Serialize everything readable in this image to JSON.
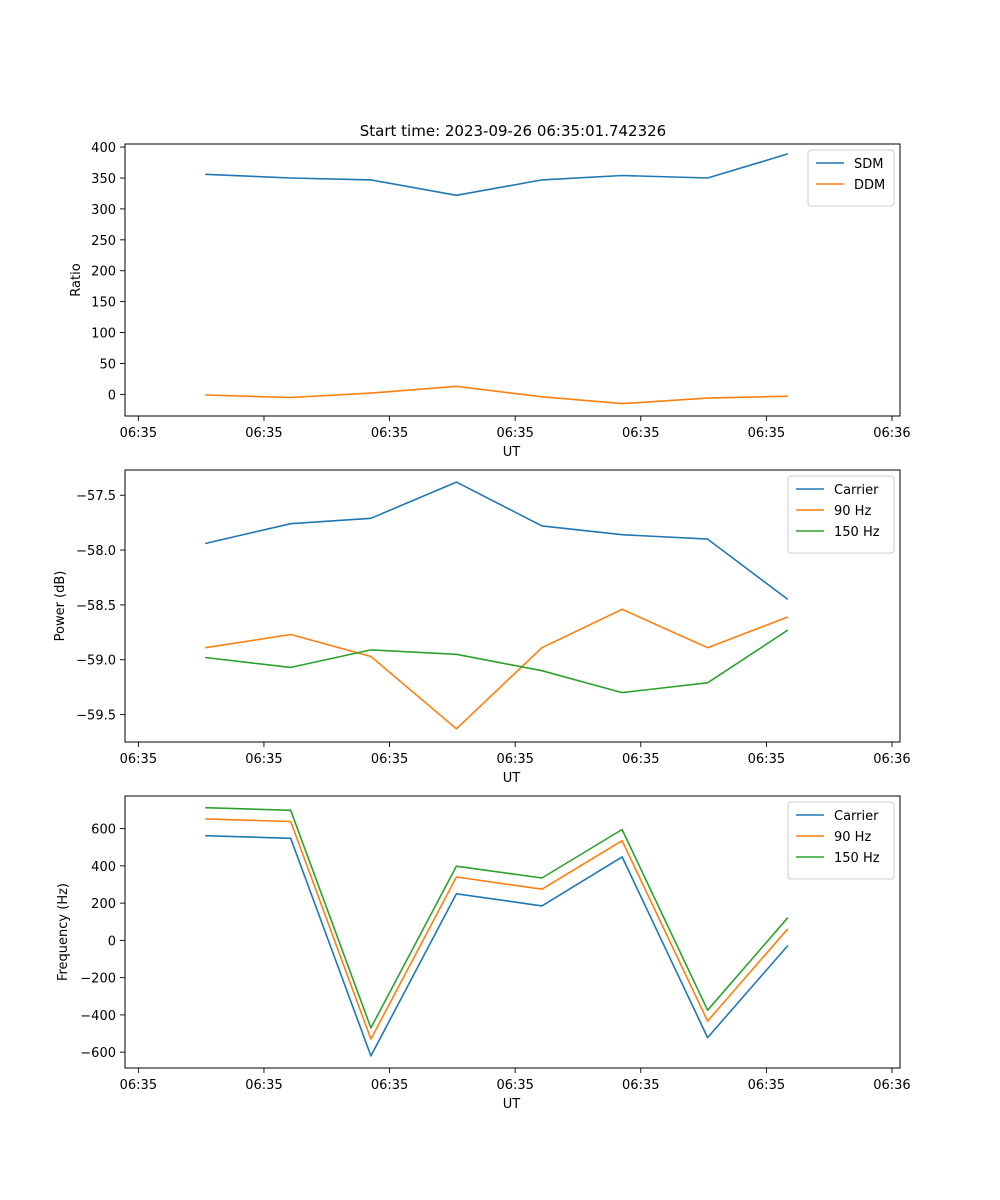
{
  "figure_title": "Start time: 2023-09-26 06:35:01.742326",
  "chart_data": [
    {
      "type": "line",
      "x": [
        1.5,
        3.1,
        4.6,
        6.2,
        7.8,
        9.3,
        10.9,
        12.4
      ],
      "xlim": [
        0,
        14.5
      ],
      "xticks": [
        0.25,
        2.6,
        4.95,
        7.3,
        9.65,
        12.0,
        14.35
      ],
      "xtick_labels": [
        "06:35",
        "06:35",
        "06:35",
        "06:35",
        "06:35",
        "06:35",
        "06:36"
      ],
      "xlabel": "UT",
      "ylabel": "Ratio",
      "ylim": [
        -35,
        405
      ],
      "yticks": [
        0,
        50,
        100,
        150,
        200,
        250,
        300,
        350,
        400
      ],
      "ytick_labels": [
        "0",
        "50",
        "100",
        "150",
        "200",
        "250",
        "300",
        "350",
        "400"
      ],
      "legend_position": "top-right",
      "series": [
        {
          "name": "SDM",
          "color": "#1f77b4",
          "values": [
            356,
            350,
            347,
            322,
            347,
            354,
            350,
            389
          ]
        },
        {
          "name": "DDM",
          "color": "#ff7f0e",
          "values": [
            -1,
            -5,
            2,
            13,
            -4,
            -15,
            -6,
            -3
          ]
        }
      ]
    },
    {
      "type": "line",
      "x": [
        1.5,
        3.1,
        4.6,
        6.2,
        7.8,
        9.3,
        10.9,
        12.4
      ],
      "xlim": [
        0,
        14.5
      ],
      "xticks": [
        0.25,
        2.6,
        4.95,
        7.3,
        9.65,
        12.0,
        14.35
      ],
      "xtick_labels": [
        "06:35",
        "06:35",
        "06:35",
        "06:35",
        "06:35",
        "06:35",
        "06:36"
      ],
      "xlabel": "UT",
      "ylabel": "Power (dB)",
      "ylim": [
        -59.75,
        -57.27
      ],
      "yticks": [
        -57.5,
        -58.0,
        -58.5,
        -59.0,
        -59.5
      ],
      "ytick_labels": [
        "−57.5",
        "−58.0",
        "−58.5",
        "−59.0",
        "−59.5"
      ],
      "legend_position": "top-right",
      "series": [
        {
          "name": "Carrier",
          "color": "#1f77b4",
          "values": [
            -57.94,
            -57.76,
            -57.71,
            -57.38,
            -57.78,
            -57.86,
            -57.9,
            -58.45
          ]
        },
        {
          "name": "90 Hz",
          "color": "#ff7f0e",
          "values": [
            -58.89,
            -58.77,
            -58.97,
            -59.63,
            -58.89,
            -58.54,
            -58.89,
            -58.61
          ]
        },
        {
          "name": "150 Hz",
          "color": "#2ca02c",
          "values": [
            -58.98,
            -59.07,
            -58.91,
            -58.95,
            -59.1,
            -59.3,
            -59.21,
            -58.73
          ]
        }
      ]
    },
    {
      "type": "line",
      "x": [
        1.5,
        3.1,
        4.6,
        6.2,
        7.8,
        9.3,
        10.9,
        12.4
      ],
      "xlim": [
        0,
        14.5
      ],
      "xticks": [
        0.25,
        2.6,
        4.95,
        7.3,
        9.65,
        12.0,
        14.35
      ],
      "xtick_labels": [
        "06:35",
        "06:35",
        "06:35",
        "06:35",
        "06:35",
        "06:35",
        "06:36"
      ],
      "xlabel": "UT",
      "ylabel": "Frequency (Hz)",
      "ylim": [
        -685,
        775
      ],
      "yticks": [
        600,
        400,
        200,
        0,
        -200,
        -400,
        -600
      ],
      "ytick_labels": [
        "600",
        "400",
        "200",
        "0",
        "−200",
        "−400",
        "−600"
      ],
      "legend_position": "top-right",
      "series": [
        {
          "name": "Carrier",
          "color": "#1f77b4",
          "values": [
            562,
            548,
            -620,
            250,
            185,
            448,
            -522,
            -28
          ]
        },
        {
          "name": "90 Hz",
          "color": "#ff7f0e",
          "values": [
            652,
            638,
            -530,
            340,
            275,
            535,
            -433,
            62
          ]
        },
        {
          "name": "150 Hz",
          "color": "#2ca02c",
          "values": [
            712,
            698,
            -470,
            398,
            335,
            595,
            -375,
            122
          ]
        }
      ]
    }
  ]
}
